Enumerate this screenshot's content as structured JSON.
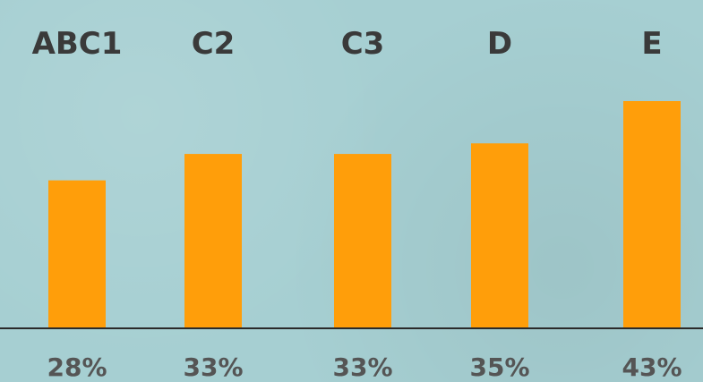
{
  "chart_data": {
    "type": "bar",
    "categories": [
      "ABC1",
      "C2",
      "C3",
      "D",
      "E"
    ],
    "values": [
      28,
      33,
      33,
      35,
      43
    ],
    "value_labels": [
      "28%",
      "33%",
      "33%",
      "35%",
      "43%"
    ],
    "ylim": [
      0,
      50
    ],
    "grid": false,
    "legend": "none",
    "colors": {
      "bar": "#ff9e0a",
      "background": "#a6cfd2",
      "baseline": "#2a2a2a",
      "category_text": "#3a3a3a",
      "value_text": "#555555"
    }
  }
}
